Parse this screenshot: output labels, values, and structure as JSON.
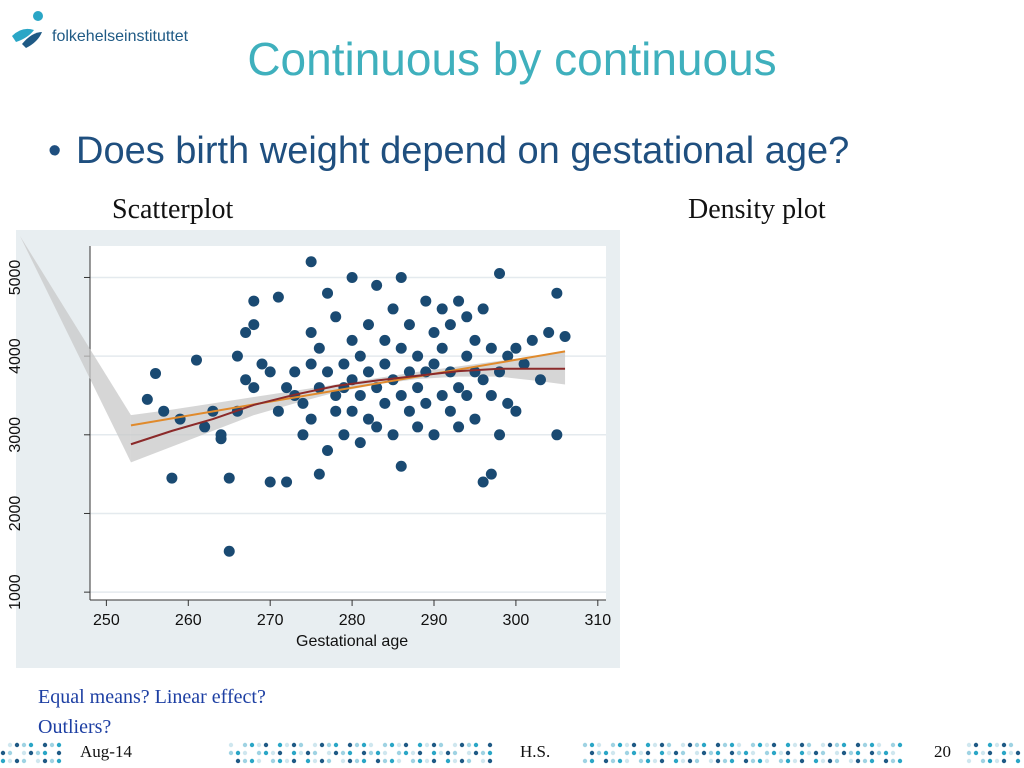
{
  "logo": {
    "text": "folkehelseinstituttet",
    "icon": "fhi-logo-icon"
  },
  "title": "Continuous by continuous",
  "bullet": "Does birth weight depend on gestational age?",
  "labels": {
    "left": "Scatterplot",
    "right": "Density plot"
  },
  "notes": [
    "Equal means? Linear effect?",
    "Outliers?"
  ],
  "footer": {
    "date": "Aug-14",
    "author": "H.S.",
    "page": "20"
  },
  "colors": {
    "title": "#3fb0bd",
    "bullet": "#1f4f7f",
    "points": "#1a4a72",
    "linear_fit": "#e08a2c",
    "lowess_fit": "#8b2a2a",
    "ci_band": "#c8c8c8",
    "panel_bg": "#e8eef1",
    "notes": "#1d3fa3"
  },
  "chart_data": {
    "type": "scatter",
    "xlabel": "Gestational age",
    "ylabel": "",
    "xlim": [
      248,
      311
    ],
    "ylim": [
      900,
      5400
    ],
    "xticks": [
      250,
      260,
      270,
      280,
      290,
      300,
      310
    ],
    "yticks": [
      1000,
      2000,
      3000,
      4000,
      5000
    ],
    "grid": true,
    "points": [
      [
        255,
        3450
      ],
      [
        256,
        3780
      ],
      [
        257,
        3300
      ],
      [
        258,
        2450
      ],
      [
        259,
        3200
      ],
      [
        261,
        3950
      ],
      [
        262,
        3100
      ],
      [
        263,
        3300
      ],
      [
        264,
        3000
      ],
      [
        264,
        2950
      ],
      [
        265,
        2450
      ],
      [
        265,
        1520
      ],
      [
        266,
        4000
      ],
      [
        266,
        3300
      ],
      [
        267,
        4300
      ],
      [
        267,
        3700
      ],
      [
        268,
        4700
      ],
      [
        268,
        4400
      ],
      [
        268,
        3600
      ],
      [
        269,
        3900
      ],
      [
        270,
        3800
      ],
      [
        270,
        2400
      ],
      [
        271,
        4750
      ],
      [
        271,
        3300
      ],
      [
        272,
        3600
      ],
      [
        272,
        2400
      ],
      [
        273,
        3500
      ],
      [
        273,
        3800
      ],
      [
        274,
        3000
      ],
      [
        274,
        3400
      ],
      [
        275,
        5200
      ],
      [
        275,
        4300
      ],
      [
        275,
        3900
      ],
      [
        275,
        3200
      ],
      [
        276,
        2500
      ],
      [
        276,
        3600
      ],
      [
        276,
        4100
      ],
      [
        277,
        3800
      ],
      [
        277,
        2800
      ],
      [
        277,
        4800
      ],
      [
        278,
        3500
      ],
      [
        278,
        4500
      ],
      [
        278,
        3300
      ],
      [
        279,
        3900
      ],
      [
        279,
        3000
      ],
      [
        279,
        3600
      ],
      [
        280,
        4200
      ],
      [
        280,
        3300
      ],
      [
        280,
        3700
      ],
      [
        280,
        5000
      ],
      [
        281,
        4000
      ],
      [
        281,
        3500
      ],
      [
        281,
        2900
      ],
      [
        282,
        3800
      ],
      [
        282,
        4400
      ],
      [
        282,
        3200
      ],
      [
        283,
        4900
      ],
      [
        283,
        3600
      ],
      [
        283,
        3100
      ],
      [
        284,
        3900
      ],
      [
        284,
        4200
      ],
      [
        284,
        3400
      ],
      [
        285,
        4600
      ],
      [
        285,
        3700
      ],
      [
        285,
        3000
      ],
      [
        286,
        5000
      ],
      [
        286,
        3500
      ],
      [
        286,
        4100
      ],
      [
        286,
        2600
      ],
      [
        287,
        3800
      ],
      [
        287,
        4400
      ],
      [
        287,
        3300
      ],
      [
        288,
        4000
      ],
      [
        288,
        3600
      ],
      [
        288,
        3100
      ],
      [
        289,
        4700
      ],
      [
        289,
        3800
      ],
      [
        289,
        3400
      ],
      [
        290,
        4300
      ],
      [
        290,
        3900
      ],
      [
        290,
        3000
      ],
      [
        291,
        4100
      ],
      [
        291,
        3500
      ],
      [
        291,
        4600
      ],
      [
        292,
        3800
      ],
      [
        292,
        3300
      ],
      [
        292,
        4400
      ],
      [
        293,
        4700
      ],
      [
        293,
        3600
      ],
      [
        293,
        3100
      ],
      [
        294,
        4000
      ],
      [
        294,
        3500
      ],
      [
        294,
        4500
      ],
      [
        295,
        3800
      ],
      [
        295,
        3200
      ],
      [
        295,
        4200
      ],
      [
        296,
        2400
      ],
      [
        296,
        3700
      ],
      [
        296,
        4600
      ],
      [
        297,
        4100
      ],
      [
        297,
        3500
      ],
      [
        297,
        2500
      ],
      [
        298,
        5050
      ],
      [
        298,
        3800
      ],
      [
        298,
        3000
      ],
      [
        299,
        3400
      ],
      [
        299,
        4000
      ],
      [
        300,
        4100
      ],
      [
        300,
        3300
      ],
      [
        301,
        3900
      ],
      [
        302,
        4200
      ],
      [
        303,
        3700
      ],
      [
        304,
        4300
      ],
      [
        305,
        4800
      ],
      [
        305,
        3000
      ],
      [
        306,
        4250
      ]
    ],
    "linear_fit": [
      [
        253,
        3120
      ],
      [
        306,
        4060
      ]
    ],
    "lowess_fit": [
      [
        253,
        2880
      ],
      [
        258,
        3050
      ],
      [
        263,
        3200
      ],
      [
        268,
        3380
      ],
      [
        273,
        3510
      ],
      [
        278,
        3620
      ],
      [
        283,
        3690
      ],
      [
        288,
        3750
      ],
      [
        293,
        3810
      ],
      [
        298,
        3840
      ],
      [
        303,
        3840
      ],
      [
        306,
        3840
      ]
    ],
    "ci_upper": [
      [
        253,
        3250
      ],
      [
        258,
        3320
      ],
      [
        263,
        3400
      ],
      [
        268,
        3480
      ],
      [
        273,
        3560
      ],
      [
        278,
        3640
      ],
      [
        283,
        3720
      ],
      [
        288,
        3800
      ],
      [
        293,
        3870
      ],
      [
        298,
        3940
      ],
      [
        303,
        4010
      ],
      [
        306,
        4060
      ]
    ],
    "ci_lower": [
      [
        253,
        2650
      ],
      [
        258,
        2850
      ],
      [
        263,
        3050
      ],
      [
        268,
        3250
      ],
      [
        273,
        3400
      ],
      [
        278,
        3540
      ],
      [
        283,
        3640
      ],
      [
        288,
        3710
      ],
      [
        293,
        3740
      ],
      [
        298,
        3740
      ],
      [
        303,
        3680
      ],
      [
        306,
        3640
      ]
    ]
  }
}
